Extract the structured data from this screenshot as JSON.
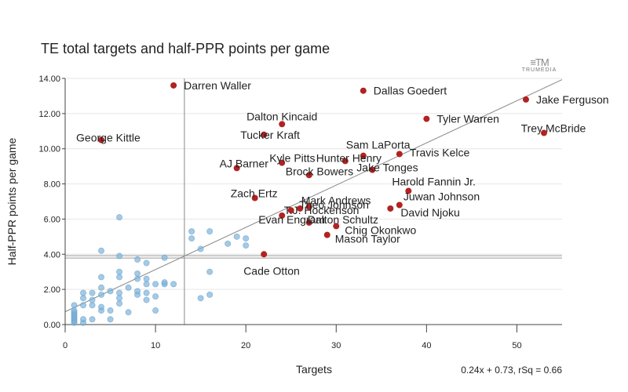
{
  "chart_data": {
    "type": "scatter",
    "title": "TE total targets and half-PPR points per game",
    "xlabel": "Targets",
    "ylabel": "Half-PPR points per game",
    "xlim": [
      0,
      55
    ],
    "ylim": [
      0,
      14
    ],
    "x_ticks": [
      0,
      10,
      20,
      30,
      40,
      50
    ],
    "x_tick_labels": [
      "0",
      "10",
      "20",
      "30",
      "40",
      "50"
    ],
    "y_ticks": [
      0,
      2,
      4,
      6,
      8,
      10,
      12,
      14
    ],
    "y_tick_labels": [
      "0.00",
      "2.00",
      "4.00",
      "6.00",
      "8.00",
      "10.00",
      "12.00",
      "14.00"
    ],
    "reference_lines": {
      "x_mean": 13.2,
      "y_mean": 3.85
    },
    "regression": {
      "slope": 0.24,
      "intercept": 0.73,
      "label": "0.24x + 0.73, rSq = 0.66"
    },
    "highlight_color": "#b22222",
    "other_color": "#7fb3da",
    "highlighted": [
      {
        "name": "Darren Waller",
        "x": 12,
        "y": 13.6
      },
      {
        "name": "Dallas Goedert",
        "x": 33,
        "y": 13.3
      },
      {
        "name": "Jake Ferguson",
        "x": 51,
        "y": 12.8
      },
      {
        "name": "Tyler Warren",
        "x": 40,
        "y": 11.7
      },
      {
        "name": "Dalton Kincaid",
        "x": 24,
        "y": 11.4
      },
      {
        "name": "Tucker Kraft",
        "x": 22,
        "y": 10.8
      },
      {
        "name": "George Kittle",
        "x": 4,
        "y": 10.5
      },
      {
        "name": "Trey McBride",
        "x": 53,
        "y": 10.9
      },
      {
        "name": "Sam LaPorta",
        "x": 33,
        "y": 9.6
      },
      {
        "name": "Travis Kelce",
        "x": 37,
        "y": 9.7
      },
      {
        "name": "Hunter Henry",
        "x": 31,
        "y": 9.3
      },
      {
        "name": "Kyle Pitts",
        "x": 24,
        "y": 9.2
      },
      {
        "name": "AJ Barner",
        "x": 19,
        "y": 8.9
      },
      {
        "name": "Brock Bowers",
        "x": 27,
        "y": 8.5
      },
      {
        "name": "Jake Tonges",
        "x": 34,
        "y": 8.8
      },
      {
        "name": "Harold Fannin Jr.",
        "x": 38,
        "y": 7.6
      },
      {
        "name": "Zach Ertz",
        "x": 21,
        "y": 7.2
      },
      {
        "name": "Mark Andrews",
        "x": 27,
        "y": 6.7
      },
      {
        "name": "Juwan Johnson",
        "x": 37,
        "y": 6.8
      },
      {
        "name": "Theo Johnson",
        "x": 26,
        "y": 6.6
      },
      {
        "name": "T.J. Hockenson",
        "x": 25,
        "y": 6.5
      },
      {
        "name": "David Njoku",
        "x": 36,
        "y": 6.6
      },
      {
        "name": "Evan Engram",
        "x": 24,
        "y": 6.2
      },
      {
        "name": "Dalton Schultz",
        "x": 27,
        "y": 5.8
      },
      {
        "name": "Chig Okonkwo",
        "x": 30,
        "y": 5.6
      },
      {
        "name": "Mason Taylor",
        "x": 29,
        "y": 5.1
      },
      {
        "name": "Cade Otton",
        "x": 22,
        "y": 4.0
      }
    ],
    "others": [
      [
        1,
        0.1
      ],
      [
        1,
        0.2
      ],
      [
        1,
        0.3
      ],
      [
        1,
        0.4
      ],
      [
        1,
        0.5
      ],
      [
        1,
        0.6
      ],
      [
        1,
        0.7
      ],
      [
        1,
        0.8
      ],
      [
        1,
        1.1
      ],
      [
        2,
        0.1
      ],
      [
        2,
        0.3
      ],
      [
        2,
        1.1
      ],
      [
        2,
        1.5
      ],
      [
        2,
        1.8
      ],
      [
        3,
        0.3
      ],
      [
        3,
        1.1
      ],
      [
        3,
        1.4
      ],
      [
        3,
        1.8
      ],
      [
        4,
        0.8
      ],
      [
        4,
        1.0
      ],
      [
        4,
        1.7
      ],
      [
        4,
        2.1
      ],
      [
        4,
        2.7
      ],
      [
        4,
        4.2
      ],
      [
        5,
        0.3
      ],
      [
        5,
        0.8
      ],
      [
        5,
        1.9
      ],
      [
        6,
        1.2
      ],
      [
        6,
        1.5
      ],
      [
        6,
        1.8
      ],
      [
        6,
        2.7
      ],
      [
        6,
        3.0
      ],
      [
        6,
        3.9
      ],
      [
        6,
        6.1
      ],
      [
        7,
        0.7
      ],
      [
        7,
        2.1
      ],
      [
        8,
        1.7
      ],
      [
        8,
        1.9
      ],
      [
        8,
        2.6
      ],
      [
        8,
        2.9
      ],
      [
        8,
        3.7
      ],
      [
        9,
        1.4
      ],
      [
        9,
        1.8
      ],
      [
        9,
        2.3
      ],
      [
        9,
        2.6
      ],
      [
        9,
        3.5
      ],
      [
        10,
        0.8
      ],
      [
        10,
        1.6
      ],
      [
        10,
        2.3
      ],
      [
        11,
        2.3
      ],
      [
        11,
        2.4
      ],
      [
        11,
        3.8
      ],
      [
        12,
        2.3
      ],
      [
        14,
        4.9
      ],
      [
        14,
        5.3
      ],
      [
        15,
        1.5
      ],
      [
        15,
        4.3
      ],
      [
        16,
        1.7
      ],
      [
        16,
        3.0
      ],
      [
        16,
        5.3
      ],
      [
        18,
        4.6
      ],
      [
        19,
        5.0
      ],
      [
        20,
        4.5
      ],
      [
        20,
        4.9
      ]
    ]
  },
  "logo": {
    "mark": "≡TM",
    "text": "TRUMEDIA"
  }
}
